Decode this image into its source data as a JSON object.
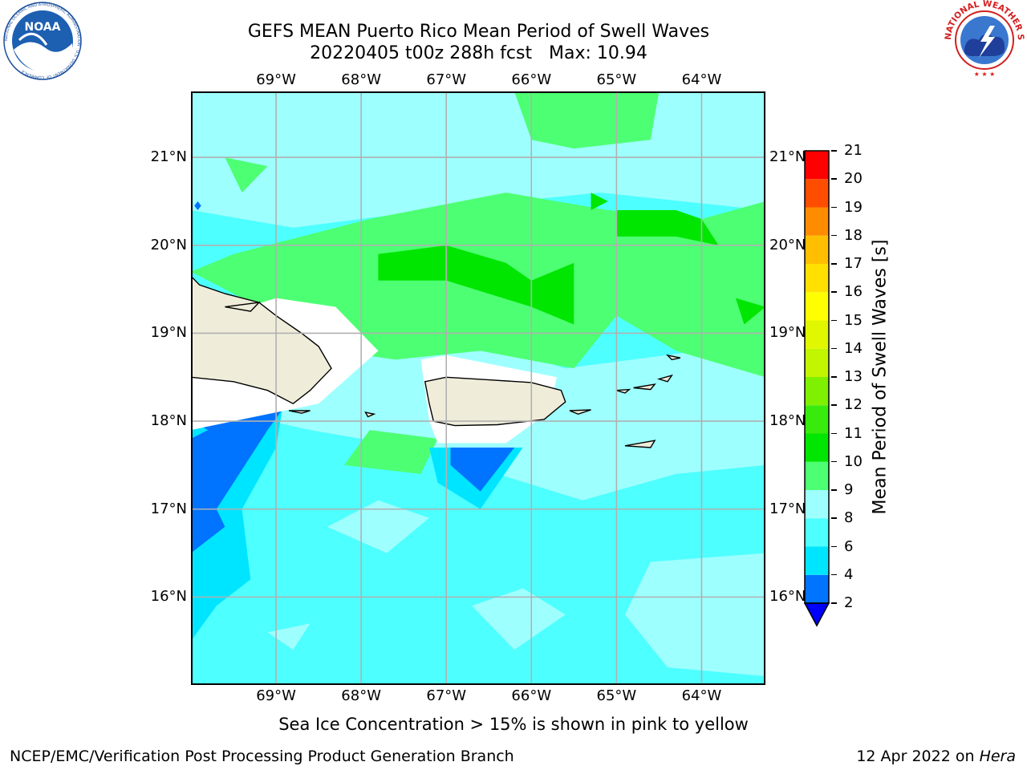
{
  "title": {
    "line1": "GEFS MEAN Puerto Rico Mean Period of Swell Waves",
    "line2": "20220405 t00z 288h fcst   Max: 10.94"
  },
  "logos": {
    "noaa_text": "NOAA",
    "noaa_ring": "NATIONAL OCEANIC AND ATMOSPHERIC ADMINISTRATION · U.S. DEPARTMENT OF COMMERCE",
    "nws_ring": "NATIONAL WEATHER SERVICE"
  },
  "map": {
    "lon_range": [
      -70,
      -63.25
    ],
    "lat_range": [
      15,
      21.75
    ],
    "lon_ticks": [
      {
        "value": -69,
        "label": "69°W"
      },
      {
        "value": -68,
        "label": "68°W"
      },
      {
        "value": -67,
        "label": "67°W"
      },
      {
        "value": -66,
        "label": "66°W"
      },
      {
        "value": -65,
        "label": "65°W"
      },
      {
        "value": -64,
        "label": "64°W"
      }
    ],
    "lat_ticks": [
      {
        "value": 21,
        "label": "21°N"
      },
      {
        "value": 20,
        "label": "20°N"
      },
      {
        "value": 19,
        "label": "19°N"
      },
      {
        "value": 18,
        "label": "18°N"
      },
      {
        "value": 17,
        "label": "17°N"
      },
      {
        "value": 16,
        "label": "16°N"
      }
    ],
    "grid": true,
    "background_level": 6,
    "land_color": "#efedda",
    "regions": [
      {
        "level": 8,
        "points": [
          [
            -70,
            21.75
          ],
          [
            -63.25,
            21.75
          ],
          [
            -63.25,
            20.4
          ],
          [
            -65.2,
            20.6
          ],
          [
            -67.2,
            20.4
          ],
          [
            -68.8,
            20.2
          ],
          [
            -70,
            20.4
          ]
        ]
      },
      {
        "level": 8,
        "points": [
          [
            -70,
            19.1
          ],
          [
            -66.6,
            18.9
          ],
          [
            -65.6,
            18.6
          ],
          [
            -63.25,
            18.9
          ],
          [
            -63.25,
            17.5
          ],
          [
            -64.3,
            17.4
          ],
          [
            -65.4,
            17.1
          ],
          [
            -67.4,
            17.7
          ],
          [
            -68.6,
            17.9
          ],
          [
            -70,
            18.2
          ]
        ]
      },
      {
        "level": 8,
        "points": [
          [
            -64.6,
            16.4
          ],
          [
            -63.25,
            16.5
          ],
          [
            -63.25,
            15.1
          ],
          [
            -64.4,
            15.2
          ],
          [
            -64.9,
            15.8
          ]
        ]
      },
      {
        "level": 8,
        "points": [
          [
            -68.4,
            16.8
          ],
          [
            -67.7,
            16.5
          ],
          [
            -67.2,
            16.9
          ],
          [
            -67.8,
            17.1
          ]
        ]
      },
      {
        "level": 8,
        "points": [
          [
            -69.1,
            15.6
          ],
          [
            -68.8,
            15.4
          ],
          [
            -68.6,
            15.7
          ]
        ]
      },
      {
        "level": 8,
        "points": [
          [
            -66.7,
            15.9
          ],
          [
            -66.2,
            15.4
          ],
          [
            -65.6,
            15.8
          ],
          [
            -66.1,
            16.1
          ]
        ]
      },
      {
        "level": 9,
        "points": [
          [
            -69.5,
            19.9
          ],
          [
            -67.9,
            20.3
          ],
          [
            -66.3,
            20.6
          ],
          [
            -65.1,
            20.4
          ],
          [
            -64.0,
            20.3
          ],
          [
            -63.25,
            20.5
          ],
          [
            -63.25,
            18.5
          ],
          [
            -64.3,
            18.8
          ],
          [
            -65.0,
            19.2
          ],
          [
            -65.5,
            18.6
          ],
          [
            -66.6,
            18.8
          ],
          [
            -67.6,
            18.7
          ],
          [
            -68.3,
            18.8
          ],
          [
            -69.4,
            19.4
          ],
          [
            -70,
            19.7
          ]
        ]
      },
      {
        "level": 9,
        "points": [
          [
            -66.2,
            21.75
          ],
          [
            -64.5,
            21.75
          ],
          [
            -64.6,
            21.2
          ],
          [
            -65.5,
            21.1
          ],
          [
            -66.0,
            21.2
          ]
        ]
      },
      {
        "level": 9,
        "points": [
          [
            -67.9,
            17.9
          ],
          [
            -67.1,
            17.8
          ],
          [
            -67.3,
            17.4
          ],
          [
            -68.2,
            17.5
          ]
        ]
      },
      {
        "level": 9,
        "points": [
          [
            -69.6,
            21.0
          ],
          [
            -69.1,
            20.9
          ],
          [
            -69.4,
            20.6
          ]
        ]
      },
      {
        "level": 10,
        "points": [
          [
            -67.8,
            19.9
          ],
          [
            -67.0,
            20.0
          ],
          [
            -66.3,
            19.8
          ],
          [
            -66.0,
            19.6
          ],
          [
            -65.5,
            19.8
          ],
          [
            -65.5,
            19.1
          ],
          [
            -66.0,
            19.3
          ],
          [
            -67.0,
            19.6
          ],
          [
            -67.8,
            19.6
          ]
        ]
      },
      {
        "level": 10,
        "points": [
          [
            -65.0,
            20.4
          ],
          [
            -64.3,
            20.4
          ],
          [
            -64.0,
            20.3
          ],
          [
            -63.8,
            20.0
          ],
          [
            -64.3,
            20.1
          ],
          [
            -65.0,
            20.1
          ]
        ]
      },
      {
        "level": 10,
        "points": [
          [
            -63.6,
            19.4
          ],
          [
            -63.25,
            19.3
          ],
          [
            -63.5,
            19.1
          ]
        ]
      },
      {
        "level": 10,
        "points": [
          [
            -65.3,
            20.6
          ],
          [
            -65.1,
            20.5
          ],
          [
            -65.3,
            20.4
          ]
        ]
      },
      {
        "level": 10,
        "points": [
          [
            -68.3,
            19.3
          ],
          [
            -68.2,
            19.1
          ],
          [
            -68.4,
            19.1
          ]
        ]
      },
      {
        "level": 4,
        "points": [
          [
            -70,
            17.8
          ],
          [
            -69.4,
            18.3
          ],
          [
            -68.9,
            18.3
          ],
          [
            -69.0,
            17.7
          ],
          [
            -69.4,
            17.0
          ],
          [
            -69.3,
            16.2
          ],
          [
            -69.7,
            15.9
          ],
          [
            -70,
            15.5
          ]
        ]
      },
      {
        "level": 4,
        "points": [
          [
            -67.2,
            17.7
          ],
          [
            -66.1,
            17.7
          ],
          [
            -66.6,
            17.0
          ],
          [
            -67.1,
            17.3
          ]
        ]
      },
      {
        "level": 2,
        "points": [
          [
            -70,
            17.8
          ],
          [
            -69.5,
            18.3
          ],
          [
            -68.8,
            18.3
          ],
          [
            -69.1,
            17.9
          ],
          [
            -69.7,
            17.0
          ],
          [
            -69.6,
            16.8
          ],
          [
            -70,
            16.5
          ]
        ]
      },
      {
        "level": 2,
        "points": [
          [
            -66.95,
            17.7
          ],
          [
            -66.2,
            17.7
          ],
          [
            -66.6,
            17.2
          ],
          [
            -66.95,
            17.5
          ]
        ]
      },
      {
        "level": 5,
        "points": [
          [
            -70,
            17.8
          ],
          [
            -69.8,
            17.9
          ],
          [
            -70,
            18.0
          ]
        ]
      },
      {
        "level": 2,
        "points": [
          [
            -69.92,
            20.5
          ],
          [
            -69.88,
            20.45
          ],
          [
            -69.92,
            20.4
          ],
          [
            -69.96,
            20.45
          ]
        ]
      }
    ],
    "masks": [
      {
        "points": [
          [
            -70,
            17.9
          ],
          [
            -68.5,
            18.2
          ],
          [
            -67.8,
            18.8
          ],
          [
            -68.3,
            19.3
          ],
          [
            -69.0,
            19.4
          ],
          [
            -70,
            19.1
          ]
        ]
      },
      {
        "points": [
          [
            -67.3,
            18.7
          ],
          [
            -67.0,
            18.75
          ],
          [
            -65.7,
            18.5
          ],
          [
            -65.8,
            18.1
          ],
          [
            -66.3,
            17.75
          ],
          [
            -67.1,
            17.75
          ],
          [
            -67.2,
            18.0
          ]
        ]
      }
    ],
    "land": [
      {
        "name": "hispaniola",
        "points": [
          [
            -70,
            19.65
          ],
          [
            -69.9,
            19.55
          ],
          [
            -69.6,
            19.45
          ],
          [
            -69.2,
            19.35
          ],
          [
            -69.0,
            19.2
          ],
          [
            -68.7,
            19.0
          ],
          [
            -68.5,
            18.85
          ],
          [
            -68.35,
            18.6
          ],
          [
            -68.6,
            18.35
          ],
          [
            -68.8,
            18.2
          ],
          [
            -69.1,
            18.35
          ],
          [
            -69.5,
            18.45
          ],
          [
            -70,
            18.5
          ]
        ]
      },
      {
        "name": "puerto-rico",
        "points": [
          [
            -67.25,
            18.45
          ],
          [
            -67.0,
            18.5
          ],
          [
            -66.5,
            18.47
          ],
          [
            -66.0,
            18.44
          ],
          [
            -65.65,
            18.35
          ],
          [
            -65.6,
            18.22
          ],
          [
            -65.85,
            18.02
          ],
          [
            -66.4,
            17.96
          ],
          [
            -66.9,
            17.95
          ],
          [
            -67.15,
            18.0
          ],
          [
            -67.2,
            18.2
          ]
        ]
      },
      {
        "name": "vieques",
        "points": [
          [
            -65.55,
            18.12
          ],
          [
            -65.3,
            18.13
          ],
          [
            -65.45,
            18.08
          ]
        ]
      },
      {
        "name": "st-thomas",
        "points": [
          [
            -65.0,
            18.35
          ],
          [
            -64.85,
            18.36
          ],
          [
            -64.9,
            18.32
          ]
        ]
      },
      {
        "name": "st-john-tortola",
        "points": [
          [
            -64.8,
            18.38
          ],
          [
            -64.55,
            18.42
          ],
          [
            -64.6,
            18.36
          ]
        ]
      },
      {
        "name": "virgin-gorda",
        "points": [
          [
            -64.5,
            18.48
          ],
          [
            -64.35,
            18.52
          ],
          [
            -64.4,
            18.45
          ]
        ]
      },
      {
        "name": "anegada",
        "points": [
          [
            -64.4,
            18.75
          ],
          [
            -64.25,
            18.72
          ],
          [
            -64.35,
            18.7
          ]
        ]
      },
      {
        "name": "st-croix",
        "points": [
          [
            -64.9,
            17.72
          ],
          [
            -64.55,
            17.78
          ],
          [
            -64.6,
            17.7
          ]
        ]
      },
      {
        "name": "mona",
        "points": [
          [
            -67.95,
            18.1
          ],
          [
            -67.85,
            18.08
          ],
          [
            -67.92,
            18.05
          ]
        ]
      },
      {
        "name": "saona",
        "points": [
          [
            -68.85,
            18.12
          ],
          [
            -68.6,
            18.12
          ],
          [
            -68.7,
            18.09
          ]
        ]
      },
      {
        "name": "caicos",
        "points": [
          [
            -69.6,
            19.3
          ],
          [
            -69.2,
            19.35
          ],
          [
            -69.3,
            19.25
          ]
        ]
      }
    ]
  },
  "colorbar": {
    "label": "Mean Period of Swell Waves [s]",
    "levels": [
      2,
      4,
      6,
      8,
      9,
      10,
      11,
      12,
      13,
      14,
      15,
      16,
      17,
      18,
      19,
      20,
      21
    ],
    "colors": [
      "#0073ff",
      "#00e5ff",
      "#4dffff",
      "#9effff",
      "#4dff73",
      "#00e600",
      "#39ea0d",
      "#7ef000",
      "#c2f500",
      "#e0f700",
      "#ffff00",
      "#ffe000",
      "#ffbf00",
      "#ff8c00",
      "#ff4d00",
      "#ff0000"
    ],
    "under_color": "#0000ff"
  },
  "footer": {
    "ice_note": "Sea Ice Concentration > 15% is shown in pink to yellow",
    "credit": "NCEP/EMC/Verification Post Processing Product Generation Branch",
    "date": "12 Apr 2022 on",
    "machine": "Hera"
  }
}
